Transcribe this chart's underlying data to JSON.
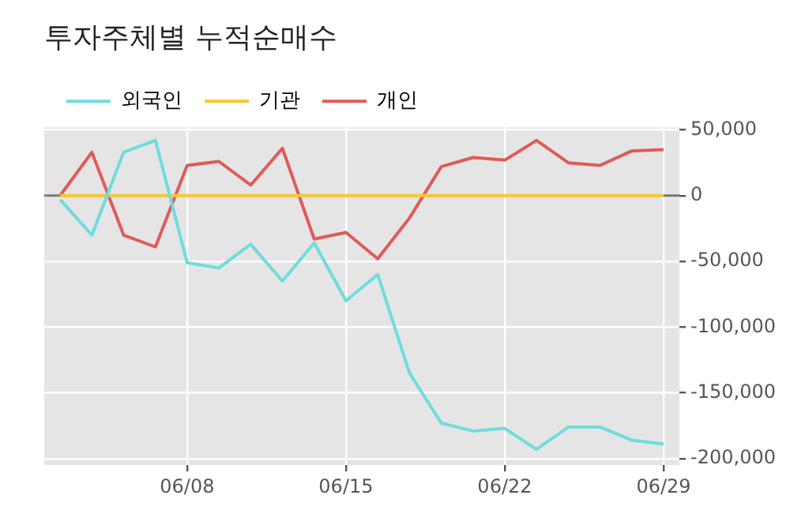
{
  "chart_data": {
    "type": "line",
    "title": "투자주체별 누적순매수",
    "categories": [
      null,
      null,
      null,
      null,
      "06/08",
      null,
      null,
      null,
      null,
      "06/15",
      null,
      null,
      null,
      null,
      "06/22",
      null,
      null,
      null,
      null,
      "06/29"
    ],
    "series": [
      {
        "name": "외국인",
        "color": "#6fdcdc",
        "values": [
          -3000,
          -30000,
          33000,
          42000,
          -51000,
          -55000,
          -37000,
          -65000,
          -36000,
          -80000,
          -60000,
          -135000,
          -173000,
          -179000,
          -177000,
          -193000,
          -176000,
          -176000,
          -186000,
          -189000
        ]
      },
      {
        "name": "기관",
        "color": "#f5c832",
        "values": [
          0,
          0,
          0,
          0,
          0,
          0,
          0,
          0,
          0,
          0,
          0,
          0,
          0,
          0,
          0,
          0,
          0,
          0,
          0,
          0
        ]
      },
      {
        "name": "개인",
        "color": "#e05a5a",
        "values": [
          0,
          33000,
          -30000,
          -39000,
          23000,
          26000,
          8000,
          36000,
          -33000,
          -28000,
          -48000,
          -17000,
          22000,
          29000,
          27000,
          42000,
          25000,
          23000,
          34000,
          35000
        ]
      }
    ],
    "ylim": [
      -205000,
      52000
    ],
    "yticks": [
      {
        "value": 50000,
        "label": "50,000"
      },
      {
        "value": 0,
        "label": "0"
      },
      {
        "value": -50000,
        "label": "-50,000"
      },
      {
        "value": -100000,
        "label": "-100,000"
      },
      {
        "value": -150000,
        "label": "-150,000"
      },
      {
        "value": -200000,
        "label": "-200,000"
      }
    ],
    "ref_lines": [
      {
        "axis": "y",
        "value": 0,
        "color": "#777777"
      }
    ],
    "grid": true,
    "legend": "top left",
    "marker": "none",
    "line_style": "solid"
  }
}
